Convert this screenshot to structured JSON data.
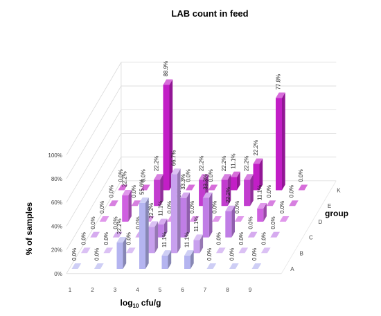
{
  "chart_data": {
    "type": "bar3d",
    "title": "LAB count in feed",
    "xlabel_main": "log",
    "xlabel_sub": "10",
    "xlabel_rest": " cfu/g",
    "ylabel": "% of samples",
    "zlabel": "group",
    "categories": [
      "1",
      "2",
      "3",
      "4",
      "5",
      "6",
      "7",
      "8",
      "9"
    ],
    "y_ticks": [
      "0%",
      "20%",
      "40%",
      "60%",
      "80%",
      "100%"
    ],
    "ylim": [
      0,
      100
    ],
    "series": [
      {
        "name": "A",
        "color": "#b4b4f0",
        "values": [
          0,
          0,
          22.2,
          55.6,
          11.1,
          11.1,
          0,
          0,
          0
        ],
        "labels": [
          "0.0%",
          "0.0%",
          "22.2%",
          "55.6%",
          "11.1%",
          "11.1%",
          "0.0%",
          "0.0%",
          "0.0%"
        ]
      },
      {
        "name": "B",
        "color": "#c8a0ee",
        "values": [
          0,
          0,
          0,
          22.2,
          66.7,
          11.1,
          0,
          0,
          0
        ],
        "labels": [
          "0.0%",
          "0.0%",
          "0.0%",
          "22.2%",
          "66.7%",
          "11.1%",
          "0.0%",
          "0.0%",
          "0.0%"
        ]
      },
      {
        "name": "C",
        "color": "#c07ee6",
        "values": [
          0,
          0,
          0,
          11.1,
          33.3,
          33.3,
          22.2,
          0,
          0
        ],
        "labels": [
          "0.0%",
          "0.0%",
          "0.0%",
          "11.1%",
          "33.3%",
          "33.3%",
          "22.2%",
          "0.0%",
          "0.0%"
        ]
      },
      {
        "name": "D",
        "color": "#cf60e0",
        "values": [
          0,
          22.2,
          0,
          0,
          0,
          0,
          0,
          11.1,
          0
        ],
        "labels": [
          "0.0%",
          "22.2%",
          "0.0%",
          "0.0%",
          "0.0%",
          "0.0%",
          "0.0%",
          "11.1%",
          "0.0%"
        ]
      },
      {
        "name": "E",
        "color": "#c23ccf",
        "values": [
          0,
          0,
          22.2,
          0,
          22.2,
          22.2,
          22.2,
          0,
          0
        ],
        "labels": [
          "0.0%",
          "0.0%",
          "22.2%",
          "0.0%",
          "22.2%",
          "22.2%",
          "22.2%",
          "0.0%",
          "0.0%"
        ]
      },
      {
        "name": "K",
        "color": "#c21ec6",
        "values": [
          0,
          0,
          88.9,
          0,
          0,
          11.1,
          22.2,
          77.8,
          0
        ],
        "labels": [
          "0.0%",
          "0.0%",
          "88.9%",
          "0.0%",
          "0.0%",
          "11.1%",
          "22.2%",
          "77.8%",
          "0.0%"
        ]
      }
    ]
  }
}
